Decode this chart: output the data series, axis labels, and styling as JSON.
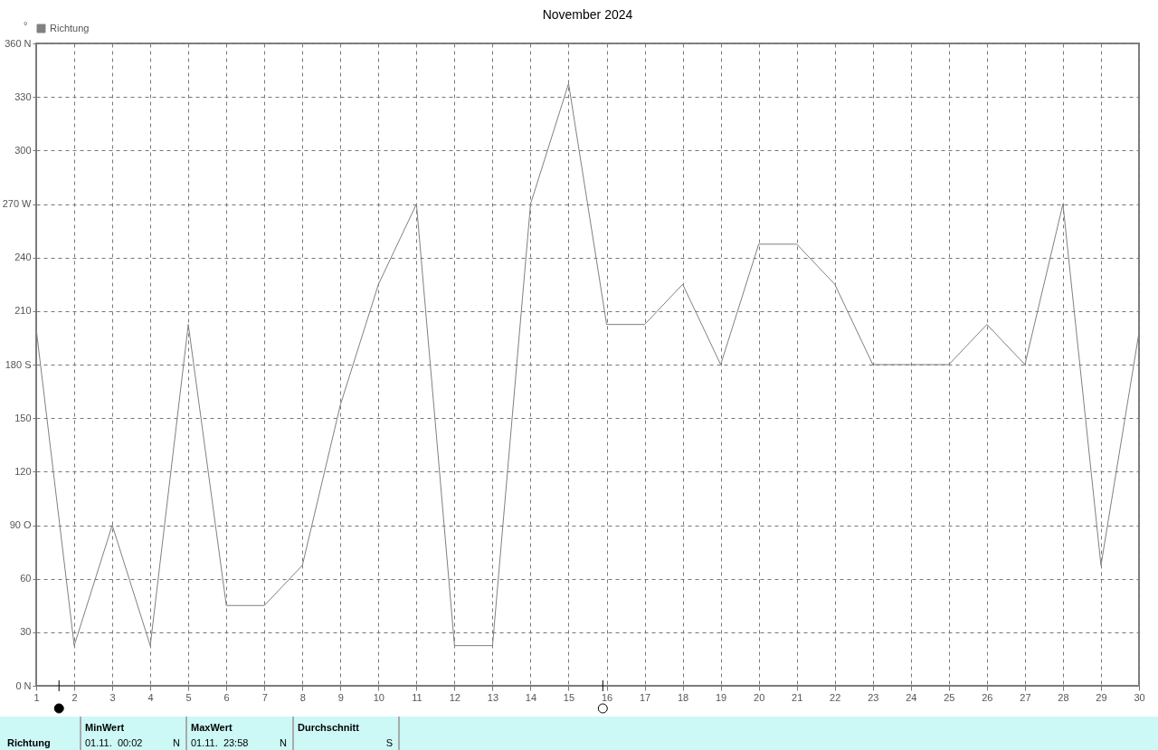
{
  "chart_data": {
    "type": "line",
    "title": "November 2024",
    "ylabel": "°",
    "x": [
      1,
      2,
      3,
      4,
      5,
      6,
      7,
      8,
      9,
      10,
      11,
      12,
      13,
      14,
      15,
      16,
      17,
      18,
      19,
      20,
      21,
      22,
      23,
      24,
      25,
      26,
      27,
      28,
      29,
      30
    ],
    "series": [
      {
        "name": "Richtung",
        "color": "#808080",
        "values": [
          200,
          22.5,
          90,
          22.5,
          202.5,
          45,
          45,
          67.5,
          157.5,
          225,
          270,
          22.5,
          22.5,
          270,
          337.5,
          202.5,
          202.5,
          225,
          180,
          247.5,
          247.5,
          225,
          180,
          180,
          180,
          202.5,
          180,
          270,
          67.5,
          198
        ]
      }
    ],
    "xlim": [
      1,
      30
    ],
    "xticks": [
      1,
      2,
      3,
      4,
      5,
      6,
      7,
      8,
      9,
      10,
      11,
      12,
      13,
      14,
      15,
      16,
      17,
      18,
      19,
      20,
      21,
      22,
      23,
      24,
      25,
      26,
      27,
      28,
      29,
      30
    ],
    "ylim": [
      0,
      360
    ],
    "yticks": [
      {
        "value": 0,
        "label": "0 N"
      },
      30,
      60,
      {
        "value": 90,
        "label": "90 O"
      },
      120,
      150,
      {
        "value": 180,
        "label": "180 S"
      },
      210,
      240,
      {
        "value": 270,
        "label": "270 W"
      },
      300,
      330,
      {
        "value": 360,
        "label": "360 N"
      }
    ],
    "grid": true,
    "legend": "top left",
    "marker": "none",
    "line_style": "solid",
    "annotations": [
      "Richtung",
      "MinWert",
      "01.11.  00:02",
      "N",
      "MaxWert",
      "01.11.  23:58",
      "N",
      "Durchschnitt",
      "S"
    ]
  }
}
